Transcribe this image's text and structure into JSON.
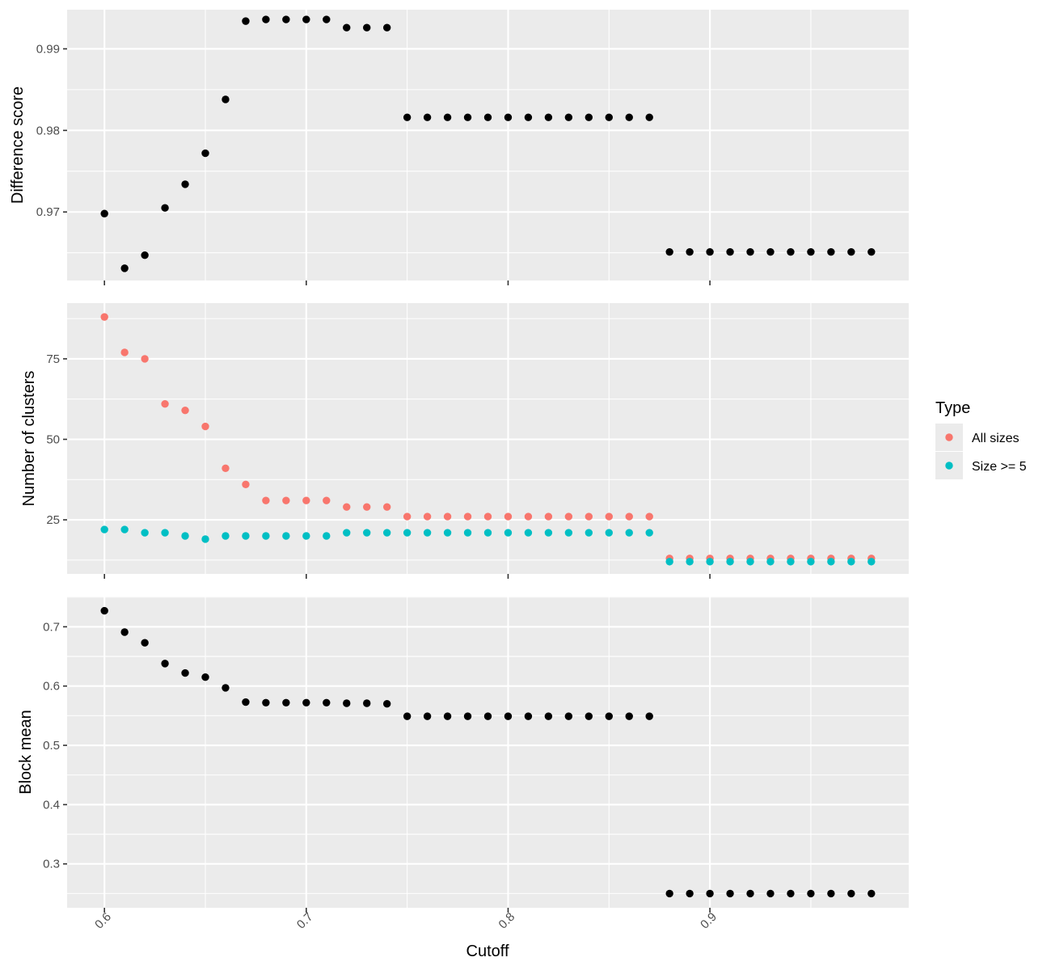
{
  "chart_data": {
    "type": "scatter",
    "xlabel": "Cutoff",
    "x": [
      0.6,
      0.61,
      0.62,
      0.63,
      0.64,
      0.65,
      0.66,
      0.67,
      0.68,
      0.69,
      0.7,
      0.71,
      0.72,
      0.73,
      0.74,
      0.75,
      0.76,
      0.77,
      0.78,
      0.79,
      0.8,
      0.81,
      0.82,
      0.83,
      0.84,
      0.85,
      0.86,
      0.87,
      0.88,
      0.89,
      0.9,
      0.91,
      0.92,
      0.93,
      0.94,
      0.95,
      0.96,
      0.97,
      0.98
    ],
    "x_ticks": [
      "0.6",
      "0.7",
      "0.8",
      "0.9"
    ],
    "xlim": [
      0.5815,
      0.9985
    ],
    "panels": [
      {
        "ylabel": "Difference score",
        "ylim": [
          0.9616,
          0.9948
        ],
        "y_ticks": [
          "0.97",
          "0.98",
          "0.99"
        ],
        "series": [
          {
            "color": "#000000",
            "values": [
              0.9698,
              0.9631,
              0.9647,
              0.9705,
              0.9734,
              0.9772,
              0.9838,
              0.9934,
              0.9936,
              0.9936,
              0.9936,
              0.9936,
              0.9926,
              0.9926,
              0.9926,
              0.9816,
              0.9816,
              0.9816,
              0.9816,
              0.9816,
              0.9816,
              0.9816,
              0.9816,
              0.9816,
              0.9816,
              0.9816,
              0.9816,
              0.9816,
              0.9651,
              0.9651,
              0.9651,
              0.9651,
              0.9651,
              0.9651,
              0.9651,
              0.9651,
              0.9651,
              0.9651,
              0.9651
            ]
          }
        ]
      },
      {
        "ylabel": "Number of clusters",
        "ylim": [
          8.2,
          92.3
        ],
        "y_ticks": [
          "25",
          "50",
          "75"
        ],
        "series": [
          {
            "name": "All sizes",
            "color": "#F8766D",
            "values": [
              88,
              77,
              75,
              61,
              59,
              54,
              41,
              36,
              31,
              31,
              31,
              31,
              29,
              29,
              29,
              26,
              26,
              26,
              26,
              26,
              26,
              26,
              26,
              26,
              26,
              26,
              26,
              26,
              13,
              13,
              13,
              13,
              13,
              13,
              13,
              13,
              13,
              13,
              13
            ]
          },
          {
            "name": "Size >= 5",
            "color": "#00BFC4",
            "values": [
              22,
              22,
              21,
              21,
              20,
              19,
              20,
              20,
              20,
              20,
              20,
              20,
              21,
              21,
              21,
              21,
              21,
              21,
              21,
              21,
              21,
              21,
              21,
              21,
              21,
              21,
              21,
              21,
              12,
              12,
              12,
              12,
              12,
              12,
              12,
              12,
              12,
              12,
              12
            ]
          }
        ]
      },
      {
        "ylabel": "Block mean",
        "ylim": [
          0.226,
          0.751
        ],
        "y_ticks": [
          "0.3",
          "0.4",
          "0.5",
          "0.6",
          "0.7"
        ],
        "series": [
          {
            "color": "#000000",
            "values": [
              0.727,
              0.691,
              0.673,
              0.638,
              0.622,
              0.615,
              0.597,
              0.573,
              0.572,
              0.572,
              0.572,
              0.572,
              0.571,
              0.571,
              0.57,
              0.549,
              0.549,
              0.549,
              0.549,
              0.549,
              0.549,
              0.549,
              0.549,
              0.549,
              0.549,
              0.549,
              0.549,
              0.549,
              0.25,
              0.25,
              0.25,
              0.25,
              0.25,
              0.25,
              0.25,
              0.25,
              0.25,
              0.25,
              0.25
            ]
          }
        ]
      }
    ],
    "legend": {
      "title": "Type",
      "position": "right",
      "entries": [
        {
          "label": "All sizes",
          "color": "#F8766D"
        },
        {
          "label": "Size >= 5",
          "color": "#00BFC4"
        }
      ]
    },
    "grid": true
  }
}
